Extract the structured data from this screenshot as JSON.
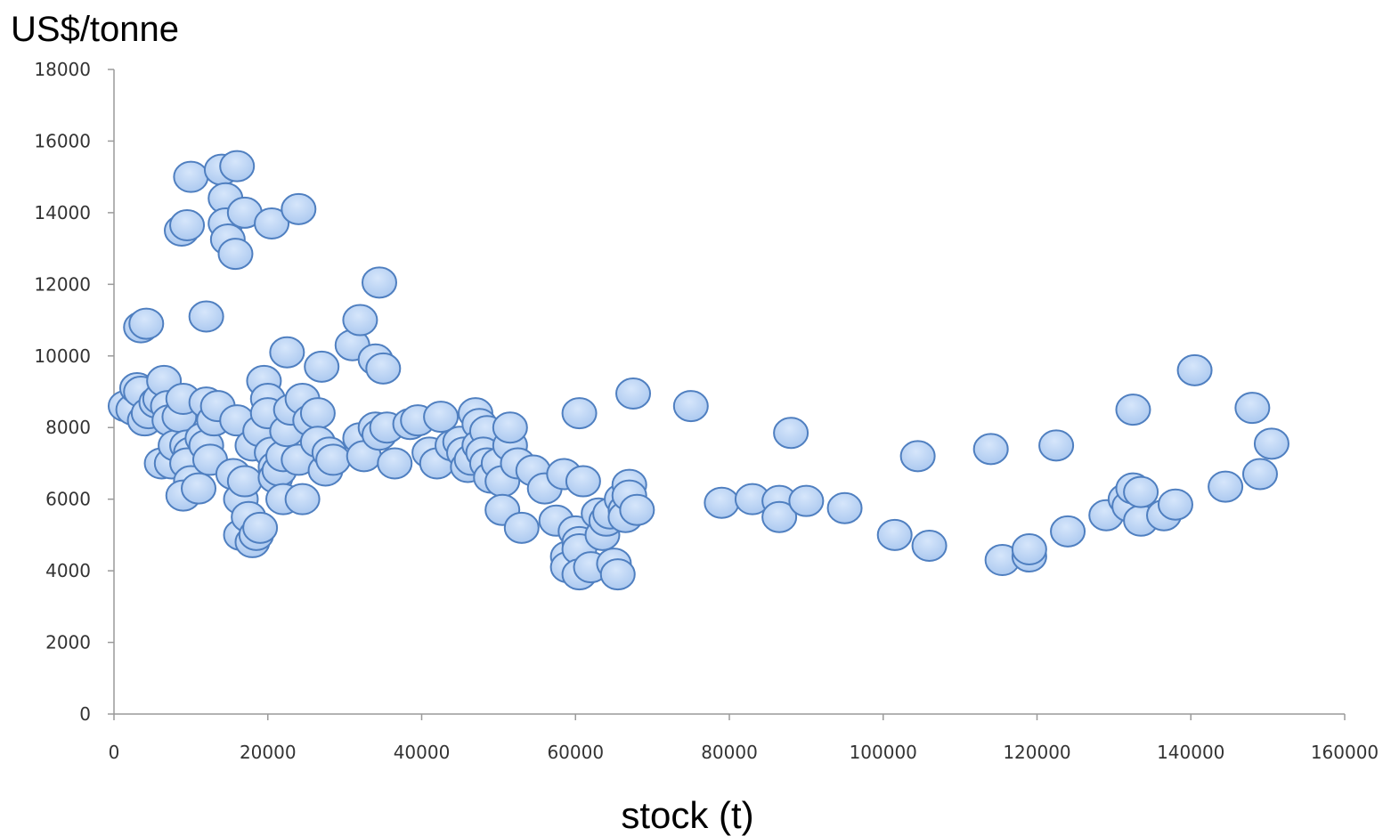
{
  "chart_data": {
    "type": "scatter",
    "title": "",
    "ylabel": "US$/tonne",
    "xlabel": "stock (t)",
    "xlim": [
      0,
      160000
    ],
    "ylim": [
      0,
      18000
    ],
    "x_ticks": [
      "0",
      "20000",
      "40000",
      "60000",
      "80000",
      "100000",
      "120000",
      "140000",
      "160000"
    ],
    "y_ticks": [
      "0",
      "2000",
      "4000",
      "6000",
      "8000",
      "10000",
      "12000",
      "14000",
      "16000",
      "18000"
    ],
    "grid": false,
    "legend": "none",
    "marker_fill": "#a9c7ef",
    "marker_stroke": "#4f7fc0",
    "series": [
      {
        "points": [
          [
            1500,
            8600
          ],
          [
            2500,
            8500
          ],
          [
            3000,
            9100
          ],
          [
            3500,
            9000
          ],
          [
            4000,
            8200
          ],
          [
            4500,
            8400
          ],
          [
            3500,
            10800
          ],
          [
            4200,
            10900
          ],
          [
            5500,
            8700
          ],
          [
            6000,
            8800
          ],
          [
            6500,
            9300
          ],
          [
            7000,
            8600
          ],
          [
            7200,
            8200
          ],
          [
            6200,
            7000
          ],
          [
            7500,
            7000
          ],
          [
            8000,
            7500
          ],
          [
            8500,
            8300
          ],
          [
            9000,
            8800
          ],
          [
            9500,
            7500
          ],
          [
            10000,
            7300
          ],
          [
            9500,
            7000
          ],
          [
            10000,
            6500
          ],
          [
            9000,
            6100
          ],
          [
            11000,
            6300
          ],
          [
            11500,
            7700
          ],
          [
            12000,
            7500
          ],
          [
            12500,
            7100
          ],
          [
            12000,
            8700
          ],
          [
            13000,
            8200
          ],
          [
            13500,
            8600
          ],
          [
            12000,
            11100
          ],
          [
            8800,
            13500
          ],
          [
            9500,
            13650
          ],
          [
            10000,
            15000
          ],
          [
            14000,
            15200
          ],
          [
            16000,
            15300
          ],
          [
            14500,
            14400
          ],
          [
            14500,
            13700
          ],
          [
            14800,
            13250
          ],
          [
            15800,
            12850
          ],
          [
            17000,
            14000
          ],
          [
            20500,
            13700
          ],
          [
            24000,
            14100
          ],
          [
            16000,
            8200
          ],
          [
            15500,
            6700
          ],
          [
            16500,
            6000
          ],
          [
            17000,
            6500
          ],
          [
            16500,
            5000
          ],
          [
            17500,
            5500
          ],
          [
            18000,
            4800
          ],
          [
            18500,
            5000
          ],
          [
            19000,
            5200
          ],
          [
            18000,
            7500
          ],
          [
            19000,
            7900
          ],
          [
            19500,
            9300
          ],
          [
            20000,
            8800
          ],
          [
            20000,
            8400
          ],
          [
            20500,
            7300
          ],
          [
            21000,
            6900
          ],
          [
            21000,
            6600
          ],
          [
            21500,
            6800
          ],
          [
            22000,
            7200
          ],
          [
            22000,
            6000
          ],
          [
            22500,
            7900
          ],
          [
            22500,
            10100
          ],
          [
            23000,
            8500
          ],
          [
            24000,
            7100
          ],
          [
            24500,
            6000
          ],
          [
            24500,
            8800
          ],
          [
            25500,
            8200
          ],
          [
            26500,
            8400
          ],
          [
            26500,
            7600
          ],
          [
            27000,
            9700
          ],
          [
            27500,
            6800
          ],
          [
            28000,
            7300
          ],
          [
            28500,
            7100
          ],
          [
            31000,
            10300
          ],
          [
            32000,
            11000
          ],
          [
            32000,
            7700
          ],
          [
            32500,
            7200
          ],
          [
            34000,
            8000
          ],
          [
            34500,
            7800
          ],
          [
            34000,
            9900
          ],
          [
            35000,
            9650
          ],
          [
            34500,
            12050
          ],
          [
            35500,
            8000
          ],
          [
            36500,
            7000
          ],
          [
            38500,
            8100
          ],
          [
            39500,
            8200
          ],
          [
            41000,
            7300
          ],
          [
            42000,
            7000
          ],
          [
            42500,
            8300
          ],
          [
            44000,
            7500
          ],
          [
            45000,
            7600
          ],
          [
            45500,
            7300
          ],
          [
            46000,
            6900
          ],
          [
            46500,
            7100
          ],
          [
            47000,
            8400
          ],
          [
            47500,
            8100
          ],
          [
            47500,
            7500
          ],
          [
            48500,
            7900
          ],
          [
            48000,
            7300
          ],
          [
            48500,
            7000
          ],
          [
            49000,
            6600
          ],
          [
            50000,
            7000
          ],
          [
            50500,
            6500
          ],
          [
            50500,
            5700
          ],
          [
            51500,
            7500
          ],
          [
            51500,
            8000
          ],
          [
            52500,
            7000
          ],
          [
            53000,
            5200
          ],
          [
            54500,
            6800
          ],
          [
            56000,
            6300
          ],
          [
            57500,
            5400
          ],
          [
            58500,
            6700
          ],
          [
            59000,
            4400
          ],
          [
            59000,
            4100
          ],
          [
            60000,
            5100
          ],
          [
            60500,
            4800
          ],
          [
            60500,
            4600
          ],
          [
            60500,
            3900
          ],
          [
            60500,
            8400
          ],
          [
            61000,
            6500
          ],
          [
            62000,
            4100
          ],
          [
            63000,
            5600
          ],
          [
            63500,
            5000
          ],
          [
            64000,
            5400
          ],
          [
            64500,
            5600
          ],
          [
            65000,
            4200
          ],
          [
            65500,
            3900
          ],
          [
            66000,
            6000
          ],
          [
            66500,
            5700
          ],
          [
            66500,
            5500
          ],
          [
            67000,
            6400
          ],
          [
            67000,
            6100
          ],
          [
            67500,
            8950
          ],
          [
            68000,
            5700
          ],
          [
            75000,
            8600
          ],
          [
            79000,
            5900
          ],
          [
            83000,
            6000
          ],
          [
            86500,
            5950
          ],
          [
            86500,
            5500
          ],
          [
            88000,
            7850
          ],
          [
            90000,
            5950
          ],
          [
            95000,
            5750
          ],
          [
            101500,
            5000
          ],
          [
            104500,
            7200
          ],
          [
            106000,
            4700
          ],
          [
            114000,
            7400
          ],
          [
            115500,
            4300
          ],
          [
            119000,
            4400
          ],
          [
            119000,
            4600
          ],
          [
            122500,
            7500
          ],
          [
            124000,
            5100
          ],
          [
            129000,
            5550
          ],
          [
            131500,
            6000
          ],
          [
            132000,
            5800
          ],
          [
            132500,
            6300
          ],
          [
            132500,
            8500
          ],
          [
            133500,
            5400
          ],
          [
            133500,
            6200
          ],
          [
            136500,
            5550
          ],
          [
            138000,
            5850
          ],
          [
            140500,
            9600
          ],
          [
            144500,
            6350
          ],
          [
            148000,
            8550
          ],
          [
            149000,
            6700
          ],
          [
            150500,
            7550
          ]
        ]
      }
    ]
  }
}
